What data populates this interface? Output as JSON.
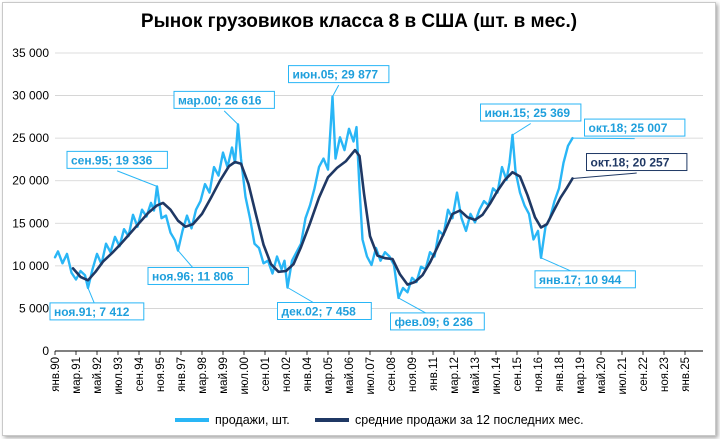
{
  "colors": {
    "sales": "#29b6f6",
    "average": "#1f3864",
    "grid": "#d0d0d0",
    "axis": "#000000"
  },
  "chart_data": {
    "type": "line",
    "title": "Рынок грузовиков класса 8 в США (шт. в мес.)",
    "ylim": [
      0,
      35000
    ],
    "yticks": [
      0,
      5000,
      10000,
      15000,
      20000,
      25000,
      30000,
      35000
    ],
    "ytick_labels": [
      "0",
      "5 000",
      "10 000",
      "15 000",
      "20 000",
      "25 000",
      "30 000",
      "35 000"
    ],
    "xlim": [
      "1990-01",
      "2026-01"
    ],
    "xtick_labels": [
      {
        "x": "1990-01",
        "label": "янв.90"
      },
      {
        "x": "1991-03",
        "label": "мар.91"
      },
      {
        "x": "1992-05",
        "label": "май.92"
      },
      {
        "x": "1993-07",
        "label": "июл.93"
      },
      {
        "x": "1994-09",
        "label": "сен.94"
      },
      {
        "x": "1995-11",
        "label": "ноя.95"
      },
      {
        "x": "1997-01",
        "label": "янв.97"
      },
      {
        "x": "1998-03",
        "label": "мар.98"
      },
      {
        "x": "1999-05",
        "label": "май.99"
      },
      {
        "x": "2000-07",
        "label": "июл.00"
      },
      {
        "x": "2001-09",
        "label": "сен.01"
      },
      {
        "x": "2002-11",
        "label": "ноя.02"
      },
      {
        "x": "2004-01",
        "label": "янв.04"
      },
      {
        "x": "2005-03",
        "label": "мар.05"
      },
      {
        "x": "2006-05",
        "label": "май.06"
      },
      {
        "x": "2007-07",
        "label": "июл.07"
      },
      {
        "x": "2008-09",
        "label": "сен.08"
      },
      {
        "x": "2009-11",
        "label": "ноя.09"
      },
      {
        "x": "2011-01",
        "label": "янв.11"
      },
      {
        "x": "2012-03",
        "label": "мар.12"
      },
      {
        "x": "2013-05",
        "label": "май.13"
      },
      {
        "x": "2014-07",
        "label": "июл.14"
      },
      {
        "x": "2015-09",
        "label": "сен.15"
      },
      {
        "x": "2016-11",
        "label": "ноя.16"
      },
      {
        "x": "2018-01",
        "label": "янв.18"
      },
      {
        "x": "2019-03",
        "label": "мар.19"
      },
      {
        "x": "2020-05",
        "label": "май.20"
      },
      {
        "x": "2021-07",
        "label": "июл.21"
      },
      {
        "x": "2022-09",
        "label": "сен.22"
      },
      {
        "x": "2023-11",
        "label": "ноя.23"
      },
      {
        "x": "2025-01",
        "label": "янв.25"
      }
    ],
    "series": [
      {
        "name": "продажи, шт.",
        "color": "#29b6f6",
        "points": [
          [
            "1990-01",
            11000
          ],
          [
            "1990-03",
            11700
          ],
          [
            "1990-06",
            10300
          ],
          [
            "1990-09",
            11400
          ],
          [
            "1990-12",
            9200
          ],
          [
            "1991-03",
            8400
          ],
          [
            "1991-06",
            9400
          ],
          [
            "1991-09",
            8900
          ],
          [
            "1991-11",
            7412
          ],
          [
            "1992-02",
            9600
          ],
          [
            "1992-05",
            11400
          ],
          [
            "1992-08",
            10200
          ],
          [
            "1992-11",
            12600
          ],
          [
            "1993-02",
            11600
          ],
          [
            "1993-05",
            13400
          ],
          [
            "1993-08",
            12300
          ],
          [
            "1993-11",
            14300
          ],
          [
            "1994-02",
            13500
          ],
          [
            "1994-05",
            16000
          ],
          [
            "1994-08",
            14600
          ],
          [
            "1994-11",
            16600
          ],
          [
            "1995-02",
            15800
          ],
          [
            "1995-05",
            17400
          ],
          [
            "1995-07",
            16500
          ],
          [
            "1995-09",
            19336
          ],
          [
            "1995-12",
            15600
          ],
          [
            "1996-03",
            15900
          ],
          [
            "1996-06",
            13900
          ],
          [
            "1996-09",
            13000
          ],
          [
            "1996-11",
            11806
          ],
          [
            "1997-02",
            14100
          ],
          [
            "1997-05",
            15900
          ],
          [
            "1997-08",
            14400
          ],
          [
            "1997-11",
            16600
          ],
          [
            "1998-02",
            17600
          ],
          [
            "1998-05",
            19600
          ],
          [
            "1998-08",
            18600
          ],
          [
            "1998-11",
            21600
          ],
          [
            "1999-02",
            20600
          ],
          [
            "1999-05",
            23300
          ],
          [
            "1999-08",
            21600
          ],
          [
            "1999-11",
            23900
          ],
          [
            "2000-01",
            22100
          ],
          [
            "2000-03",
            26616
          ],
          [
            "2000-05",
            22600
          ],
          [
            "2000-08",
            18100
          ],
          [
            "2000-11",
            15600
          ],
          [
            "2001-02",
            12600
          ],
          [
            "2001-05",
            12100
          ],
          [
            "2001-08",
            10300
          ],
          [
            "2001-11",
            10600
          ],
          [
            "2002-02",
            9100
          ],
          [
            "2002-05",
            11100
          ],
          [
            "2002-08",
            9600
          ],
          [
            "2002-10",
            10600
          ],
          [
            "2002-12",
            7458
          ],
          [
            "2003-03",
            10600
          ],
          [
            "2003-06",
            11600
          ],
          [
            "2003-09",
            12600
          ],
          [
            "2003-12",
            15600
          ],
          [
            "2004-03",
            17100
          ],
          [
            "2004-06",
            19100
          ],
          [
            "2004-09",
            21600
          ],
          [
            "2004-12",
            22600
          ],
          [
            "2005-03",
            21300
          ],
          [
            "2005-06",
            29877
          ],
          [
            "2005-08",
            22600
          ],
          [
            "2005-11",
            25100
          ],
          [
            "2006-02",
            23600
          ],
          [
            "2006-05",
            26100
          ],
          [
            "2006-08",
            24600
          ],
          [
            "2006-10",
            26300
          ],
          [
            "2006-12",
            19100
          ],
          [
            "2007-02",
            13100
          ],
          [
            "2007-05",
            11100
          ],
          [
            "2007-08",
            10100
          ],
          [
            "2007-11",
            12100
          ],
          [
            "2008-02",
            10600
          ],
          [
            "2008-05",
            11600
          ],
          [
            "2008-08",
            11100
          ],
          [
            "2008-11",
            10100
          ],
          [
            "2009-02",
            6236
          ],
          [
            "2009-05",
            7400
          ],
          [
            "2009-08",
            6900
          ],
          [
            "2009-11",
            8600
          ],
          [
            "2010-02",
            8100
          ],
          [
            "2010-05",
            9900
          ],
          [
            "2010-08",
            9600
          ],
          [
            "2010-11",
            11600
          ],
          [
            "2011-02",
            11100
          ],
          [
            "2011-05",
            14100
          ],
          [
            "2011-08",
            13600
          ],
          [
            "2011-11",
            16600
          ],
          [
            "2012-02",
            15600
          ],
          [
            "2012-05",
            18600
          ],
          [
            "2012-08",
            15600
          ],
          [
            "2012-11",
            14100
          ],
          [
            "2013-02",
            16100
          ],
          [
            "2013-05",
            15100
          ],
          [
            "2013-08",
            16600
          ],
          [
            "2013-11",
            17600
          ],
          [
            "2014-02",
            17100
          ],
          [
            "2014-05",
            19100
          ],
          [
            "2014-08",
            18600
          ],
          [
            "2014-11",
            21600
          ],
          [
            "2015-02",
            20100
          ],
          [
            "2015-04",
            22100
          ],
          [
            "2015-06",
            25369
          ],
          [
            "2015-08",
            21100
          ],
          [
            "2015-11",
            18600
          ],
          [
            "2016-02",
            17100
          ],
          [
            "2016-05",
            16100
          ],
          [
            "2016-08",
            13100
          ],
          [
            "2016-11",
            14100
          ],
          [
            "2017-01",
            10944
          ],
          [
            "2017-04",
            14600
          ],
          [
            "2017-07",
            15600
          ],
          [
            "2017-10",
            17600
          ],
          [
            "2018-01",
            19100
          ],
          [
            "2018-04",
            22100
          ],
          [
            "2018-07",
            24100
          ],
          [
            "2018-10",
            25007
          ]
        ]
      },
      {
        "name": "средние продажи за 12 последних мес.",
        "color": "#1f3864",
        "points": [
          [
            "1991-01",
            9700
          ],
          [
            "1991-06",
            8700
          ],
          [
            "1991-11",
            8300
          ],
          [
            "1992-04",
            9300
          ],
          [
            "1992-09",
            10500
          ],
          [
            "1993-03",
            11500
          ],
          [
            "1993-09",
            12600
          ],
          [
            "1994-03",
            13800
          ],
          [
            "1994-09",
            15000
          ],
          [
            "1995-03",
            16200
          ],
          [
            "1995-09",
            17100
          ],
          [
            "1996-01",
            17400
          ],
          [
            "1996-06",
            16600
          ],
          [
            "1996-11",
            15300
          ],
          [
            "1997-04",
            14600
          ],
          [
            "1997-09",
            14900
          ],
          [
            "1998-03",
            16100
          ],
          [
            "1998-09",
            18000
          ],
          [
            "1999-03",
            20000
          ],
          [
            "1999-09",
            21700
          ],
          [
            "2000-01",
            22200
          ],
          [
            "2000-05",
            22000
          ],
          [
            "2000-10",
            19600
          ],
          [
            "2001-03",
            16000
          ],
          [
            "2001-08",
            12500
          ],
          [
            "2002-01",
            10200
          ],
          [
            "2002-06",
            9300
          ],
          [
            "2002-11",
            9400
          ],
          [
            "2003-04",
            10200
          ],
          [
            "2003-09",
            12200
          ],
          [
            "2004-03",
            15000
          ],
          [
            "2004-09",
            18000
          ],
          [
            "2005-03",
            20400
          ],
          [
            "2005-09",
            21500
          ],
          [
            "2006-03",
            22300
          ],
          [
            "2006-09",
            23600
          ],
          [
            "2006-12",
            22900
          ],
          [
            "2007-03",
            18500
          ],
          [
            "2007-07",
            13500
          ],
          [
            "2007-12",
            11200
          ],
          [
            "2008-05",
            10900
          ],
          [
            "2008-10",
            10800
          ],
          [
            "2009-03",
            9000
          ],
          [
            "2009-08",
            7800
          ],
          [
            "2010-01",
            8100
          ],
          [
            "2010-06",
            8900
          ],
          [
            "2010-11",
            10400
          ],
          [
            "2011-04",
            12200
          ],
          [
            "2011-09",
            14100
          ],
          [
            "2012-02",
            16100
          ],
          [
            "2012-07",
            16500
          ],
          [
            "2012-12",
            15700
          ],
          [
            "2013-05",
            15400
          ],
          [
            "2013-10",
            16000
          ],
          [
            "2014-03",
            17300
          ],
          [
            "2014-08",
            18800
          ],
          [
            "2015-01",
            20100
          ],
          [
            "2015-06",
            21000
          ],
          [
            "2015-11",
            20500
          ],
          [
            "2016-04",
            18300
          ],
          [
            "2016-09",
            15700
          ],
          [
            "2017-01",
            14500
          ],
          [
            "2017-05",
            14900
          ],
          [
            "2017-09",
            16300
          ],
          [
            "2018-02",
            18000
          ],
          [
            "2018-06",
            19100
          ],
          [
            "2018-10",
            20257
          ]
        ]
      }
    ],
    "annotations": [
      {
        "label": "ноя.91; 7 412",
        "x": "1991-11",
        "y": 7412,
        "series": "продажи, шт."
      },
      {
        "label": "сен.95; 19 336",
        "x": "1995-09",
        "y": 19336,
        "series": "продажи, шт."
      },
      {
        "label": "ноя.96; 11 806",
        "x": "1996-11",
        "y": 11806,
        "series": "продажи, шт."
      },
      {
        "label": "мар.00; 26 616",
        "x": "2000-03",
        "y": 26616,
        "series": "продажи, шт."
      },
      {
        "label": "дек.02; 7 458",
        "x": "2002-12",
        "y": 7458,
        "series": "продажи, шт."
      },
      {
        "label": "июн.05; 29 877",
        "x": "2005-06",
        "y": 29877,
        "series": "продажи, шт."
      },
      {
        "label": "фев.09; 6 236",
        "x": "2009-02",
        "y": 6236,
        "series": "продажи, шт."
      },
      {
        "label": "июн.15; 25 369",
        "x": "2015-06",
        "y": 25369,
        "series": "продажи, шт."
      },
      {
        "label": "янв.17; 10 944",
        "x": "2017-01",
        "y": 10944,
        "series": "продажи, шт."
      },
      {
        "label": "окт.18; 25 007",
        "x": "2018-10",
        "y": 25007,
        "series": "продажи, шт."
      },
      {
        "label": "окт.18; 20 257",
        "x": "2018-10",
        "y": 20257,
        "series": "средние продажи за 12 последних мес."
      }
    ],
    "grid": true,
    "legend": "bottom"
  }
}
